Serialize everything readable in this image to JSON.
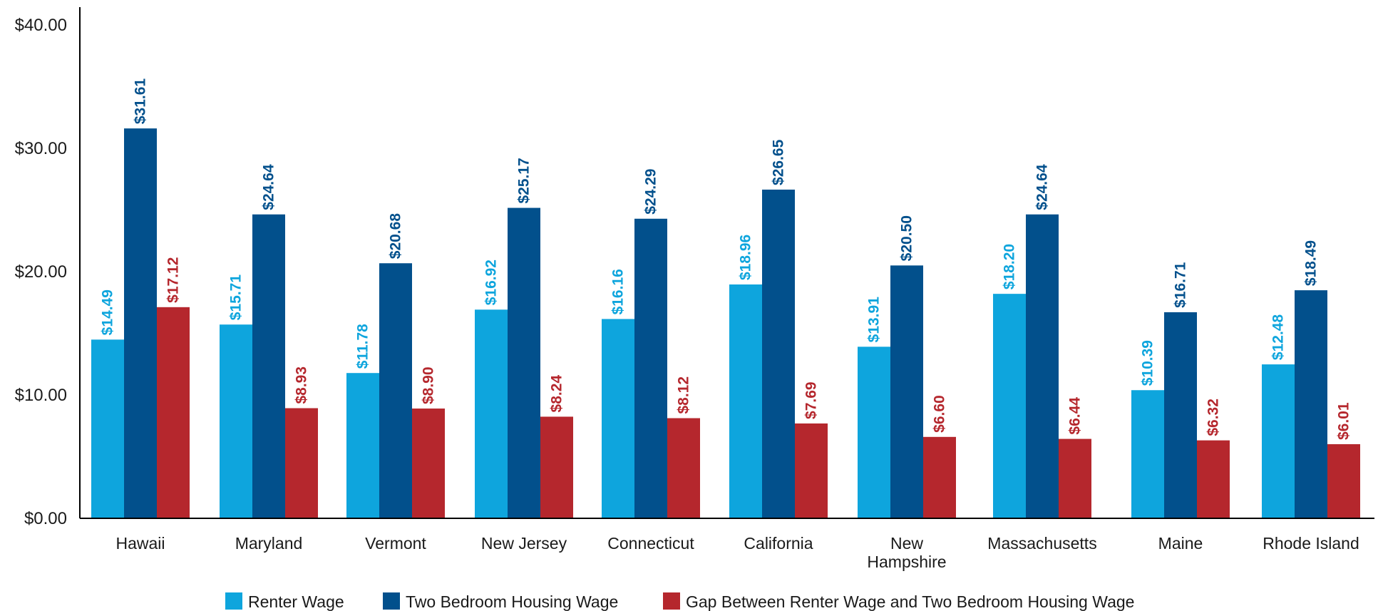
{
  "chart_data": {
    "type": "bar",
    "title": "",
    "xlabel": "",
    "ylabel": "",
    "ylim": [
      0,
      40
    ],
    "y_ticks": [
      "$0.00",
      "$10.00",
      "$20.00",
      "$30.00",
      "$40.00"
    ],
    "y_tick_values": [
      0,
      10,
      20,
      30,
      40
    ],
    "grid": false,
    "legend_position": "bottom",
    "categories": [
      "Hawaii",
      "Maryland",
      "Vermont",
      "New Jersey",
      "Connecticut",
      "California",
      "New Hampshire",
      "Massachusetts",
      "Maine",
      "Rhode Island"
    ],
    "category_lines": [
      [
        "Hawaii"
      ],
      [
        "Maryland"
      ],
      [
        "Vermont"
      ],
      [
        "New Jersey"
      ],
      [
        "Connecticut"
      ],
      [
        "California"
      ],
      [
        "New",
        "Hampshire"
      ],
      [
        "Massachusetts"
      ],
      [
        "Maine"
      ],
      [
        "Rhode Island"
      ]
    ],
    "series": [
      {
        "name": "Renter Wage",
        "color": "#0ea5dd",
        "values": [
          14.49,
          15.71,
          11.78,
          16.92,
          16.16,
          18.96,
          13.91,
          18.2,
          10.39,
          12.48
        ],
        "labels": [
          "$14.49",
          "$15.71",
          "$11.78",
          "$16.92",
          "$16.16",
          "$18.96",
          "$13.91",
          "$18.20",
          "$10.39",
          "$12.48"
        ]
      },
      {
        "name": "Two Bedroom Housing Wage",
        "color": "#02508c",
        "values": [
          31.61,
          24.64,
          20.68,
          25.17,
          24.29,
          26.65,
          20.5,
          24.64,
          16.71,
          18.49
        ],
        "labels": [
          "$31.61",
          "$24.64",
          "$20.68",
          "$25.17",
          "$24.29",
          "$26.65",
          "$20.50",
          "$24.64",
          "$16.71",
          "$18.49"
        ]
      },
      {
        "name": "Gap Between Renter Wage and Two Bedroom Housing Wage",
        "color": "#b5272d",
        "values": [
          17.12,
          8.93,
          8.9,
          8.24,
          8.12,
          7.69,
          6.6,
          6.44,
          6.32,
          6.01
        ],
        "labels": [
          "$17.12",
          "$8.93",
          "$8.90",
          "$8.24",
          "$8.12",
          "$7.69",
          "$6.60",
          "$6.44",
          "$6.32",
          "$6.01"
        ]
      }
    ]
  }
}
